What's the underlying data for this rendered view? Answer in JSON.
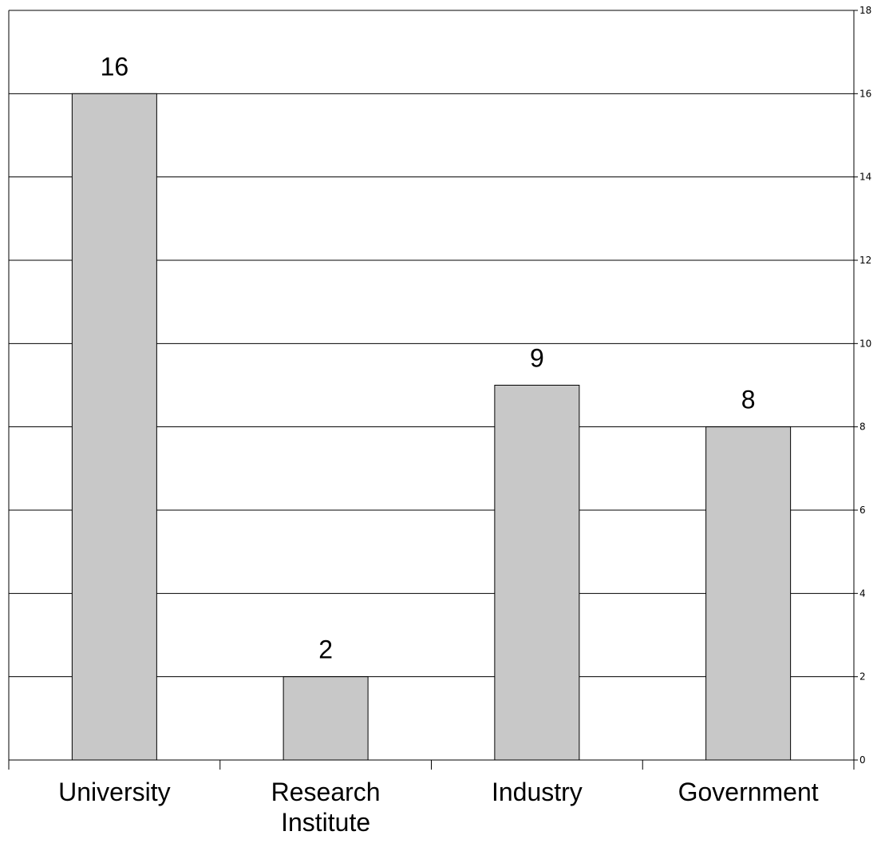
{
  "chart_data": {
    "type": "bar",
    "categories": [
      [
        "University"
      ],
      [
        "Research",
        "Institute"
      ],
      [
        "Industry"
      ],
      [
        "Government"
      ]
    ],
    "values": [
      16,
      2,
      9,
      8
    ],
    "data_labels": [
      "16",
      "2",
      "9",
      "8"
    ],
    "ylim": [
      0,
      18
    ],
    "y_ticks": [
      0,
      2,
      4,
      6,
      8,
      10,
      12,
      14,
      16,
      18
    ],
    "y_axis_side": "right",
    "grid": true,
    "legend": "none",
    "colors": {
      "bar_fill": "#c8c8c8",
      "bar_stroke": "#000000",
      "grid": "#000000",
      "background": "#ffffff"
    }
  }
}
